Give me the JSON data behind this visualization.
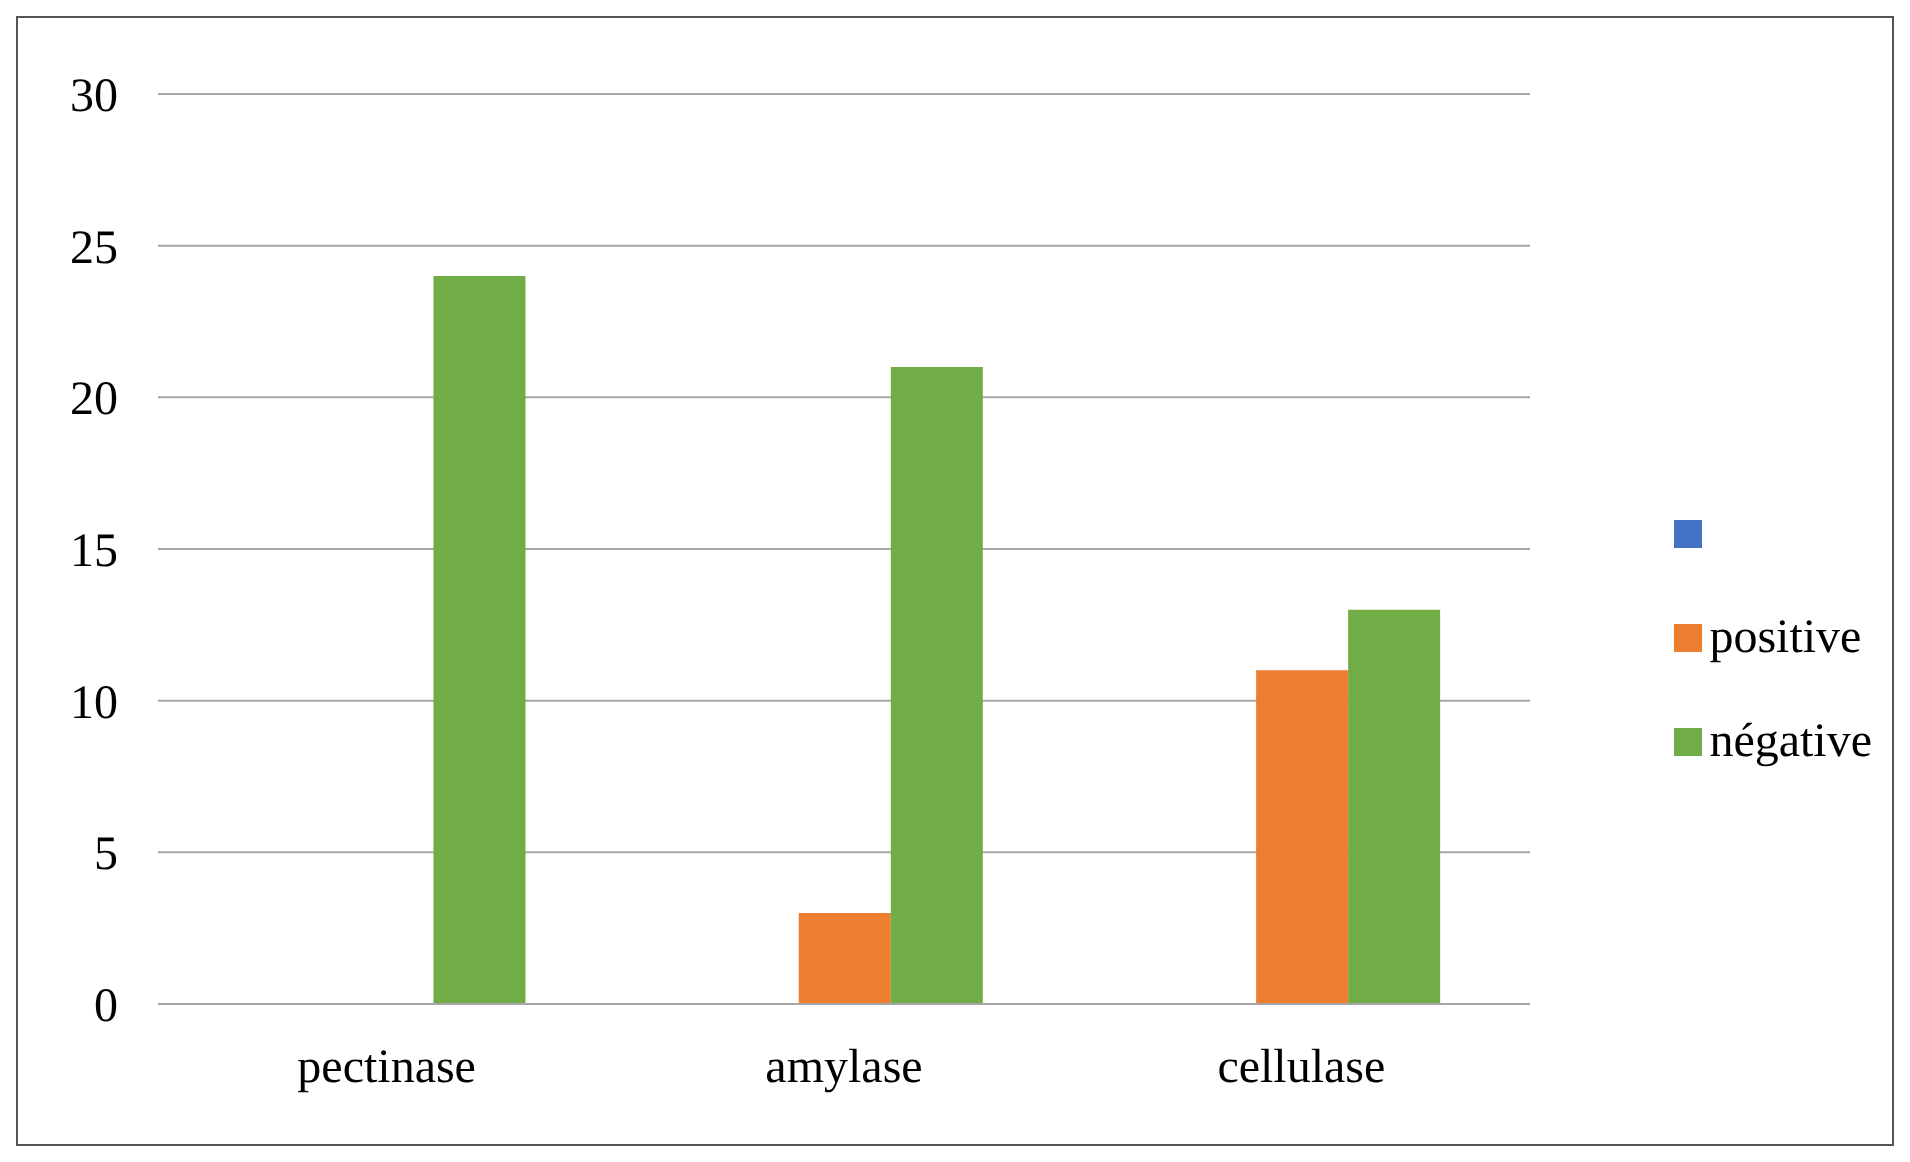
{
  "chart_data": {
    "type": "bar",
    "categories": [
      "pectinase",
      "amylase",
      "cellulase"
    ],
    "series": [
      {
        "color": "#4472c4",
        "values": [
          0,
          0,
          0
        ]
      },
      {
        "name": "positive",
        "color": "#ed7d31",
        "values": [
          0,
          3,
          11
        ]
      },
      {
        "name": "négative",
        "color": "#70ad47",
        "values": [
          24,
          21,
          13
        ]
      }
    ],
    "ylim": [
      0,
      30
    ],
    "yticks": [
      0,
      5,
      10,
      15,
      20,
      25,
      30
    ],
    "grid": "y",
    "legend": "right"
  }
}
